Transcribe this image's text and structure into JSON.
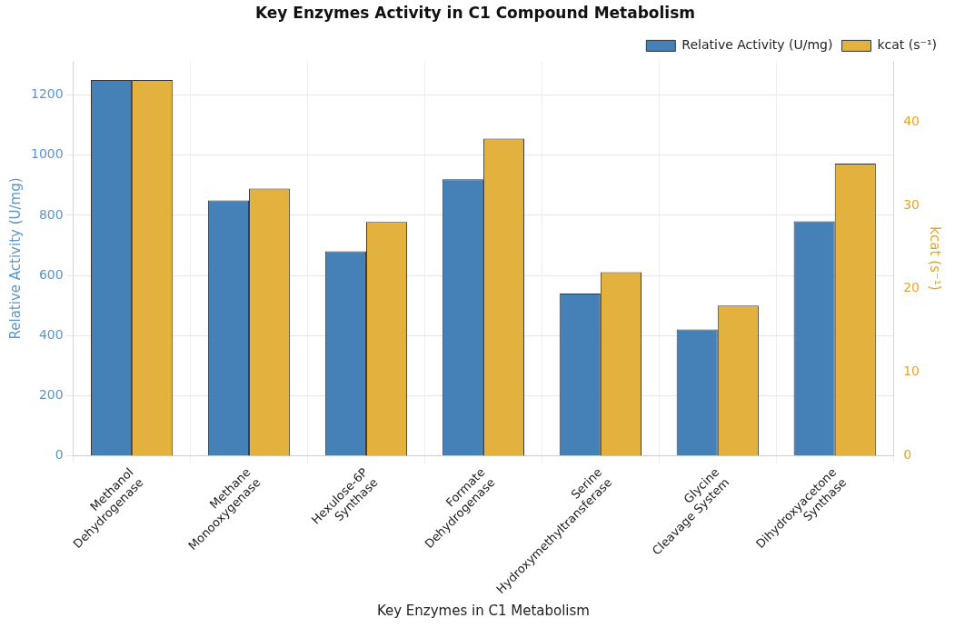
{
  "chart_data": {
    "type": "bar",
    "title": "Key Enzymes Activity in C1 Compound Metabolism",
    "xlabel": "Key Enzymes in C1 Metabolism",
    "ylabel": "Relative Activity (U/mg)",
    "y2label": "kcat (s⁻¹)",
    "categories": [
      "Methanol\nDehydrogenase",
      "Methane\nMonooxygenase",
      "Hexulose-6P\nSynthase",
      "Formate\nDehydrogenase",
      "Serine\nHydroxymethyltransferase",
      "Glycine\nCleavage System",
      "Dihydroxyacetone\nSynthase"
    ],
    "series": [
      {
        "name": "Relative Activity (U/mg)",
        "color": "#4581b6",
        "values": [
          1250,
          850,
          680,
          920,
          540,
          420,
          780
        ]
      },
      {
        "name": "kcat (s⁻¹)",
        "color": "#e3b23e",
        "axis": "y2",
        "values": [
          45,
          32,
          28,
          38,
          22,
          18,
          35
        ]
      }
    ],
    "ylim": [
      0,
      1312.5
    ],
    "yticks": [
      0,
      200,
      400,
      600,
      800,
      1000,
      1200
    ],
    "y2lim": [
      0,
      47.25
    ],
    "y2ticks": [
      0,
      10,
      20,
      30,
      40
    ],
    "grid": true,
    "legend": "top right"
  }
}
